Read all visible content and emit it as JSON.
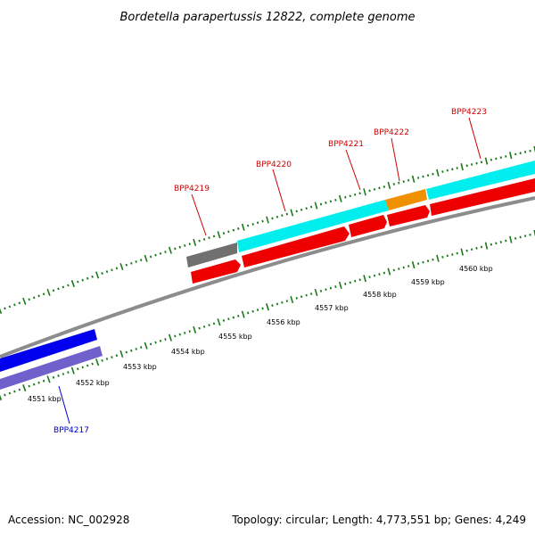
{
  "title": "Bordetella parapertussis 12822, complete genome",
  "accession": "Accession: NC_002928",
  "summary": "Topology: circular; Length: 4,773,551 bp; Genes: 4,249",
  "kbp_labels": [
    "4551 kbp",
    "4552 kbp",
    "4553 kbp",
    "4554 kbp",
    "4555 kbp",
    "4556 kbp",
    "4557 kbp",
    "4558 kbp",
    "4559 kbp",
    "4560 kbp"
  ],
  "gene_labels": [
    {
      "name": "BPP4217",
      "strand": "minus"
    },
    {
      "name": "BPP4219",
      "strand": "plus"
    },
    {
      "name": "BPP4220",
      "strand": "plus"
    },
    {
      "name": "BPP4221",
      "strand": "plus"
    },
    {
      "name": "BPP4222",
      "strand": "plus"
    },
    {
      "name": "BPP4223",
      "strand": "plus"
    }
  ],
  "colors": {
    "plus_label": "#cc0000",
    "minus_label": "#0000cc",
    "tick": "#1a7a1a",
    "backbone": "#8c8c8c",
    "cds_red": "#ee0000",
    "cds_cyan": "#00eeee",
    "cds_orange": "#ee9000",
    "cds_gray": "#707070",
    "cds_blue": "#0000ee",
    "cds_purple": "#7060cc"
  }
}
